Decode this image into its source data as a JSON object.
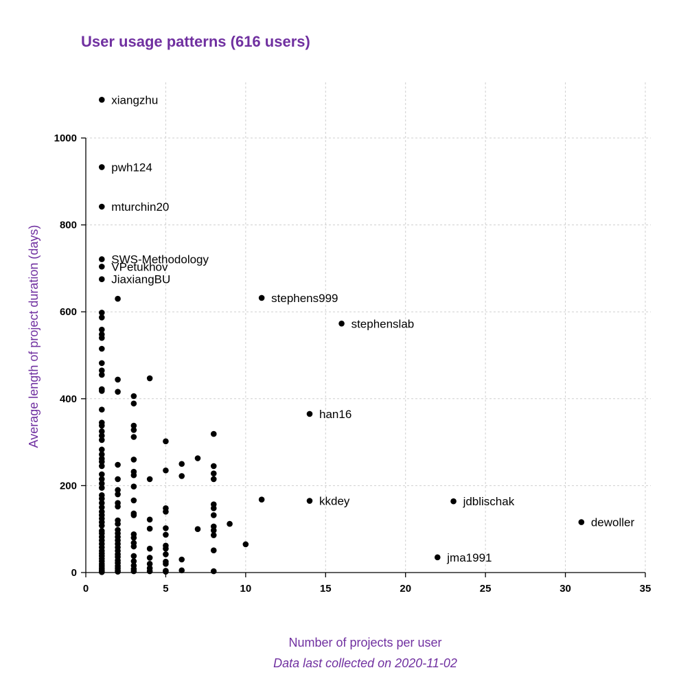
{
  "chart_data": {
    "type": "scatter",
    "title": "User usage patterns (616 users)",
    "xlabel": "Number of projects per user",
    "ylabel": "Average length of project duration (days)",
    "caption": "Data last collected on 2020-11-02",
    "xlim": [
      0,
      35
    ],
    "ylim": [
      0,
      1000
    ],
    "xticks": [
      0,
      5,
      10,
      15,
      20,
      25,
      30,
      35
    ],
    "yticks": [
      0,
      200,
      400,
      600,
      800,
      1000
    ],
    "grid": true,
    "colors": {
      "title": "#7030a0",
      "points": "#000000",
      "grid": "#cfcfcf"
    },
    "labeled_points": [
      {
        "x": 1,
        "y": 1088,
        "label": "xiangzhu"
      },
      {
        "x": 1,
        "y": 933,
        "label": "pwh124"
      },
      {
        "x": 1,
        "y": 842,
        "label": "mturchin20"
      },
      {
        "x": 1,
        "y": 721,
        "label": "SWS-Methodology"
      },
      {
        "x": 1,
        "y": 704,
        "label": "VPetukhov"
      },
      {
        "x": 1,
        "y": 675,
        "label": "JiaxiangBU"
      },
      {
        "x": 11,
        "y": 632,
        "label": "stephens999"
      },
      {
        "x": 16,
        "y": 573,
        "label": "stephenslab"
      },
      {
        "x": 14,
        "y": 365,
        "label": "han16"
      },
      {
        "x": 14,
        "y": 165,
        "label": "kkdey"
      },
      {
        "x": 23,
        "y": 164,
        "label": "jdblischak"
      },
      {
        "x": 31,
        "y": 116,
        "label": "dewoller"
      },
      {
        "x": 22,
        "y": 35,
        "label": "jma1991"
      }
    ],
    "points": [
      [
        1,
        598
      ],
      [
        1,
        587
      ],
      [
        1,
        559
      ],
      [
        1,
        548
      ],
      [
        1,
        540
      ],
      [
        1,
        515
      ],
      [
        1,
        482
      ],
      [
        1,
        465
      ],
      [
        1,
        455
      ],
      [
        1,
        422
      ],
      [
        1,
        418
      ],
      [
        1,
        375
      ],
      [
        1,
        345
      ],
      [
        1,
        338
      ],
      [
        1,
        325
      ],
      [
        1,
        315
      ],
      [
        1,
        305
      ],
      [
        1,
        283
      ],
      [
        1,
        272
      ],
      [
        1,
        262
      ],
      [
        1,
        255
      ],
      [
        1,
        245
      ],
      [
        1,
        226
      ],
      [
        1,
        215
      ],
      [
        1,
        205
      ],
      [
        1,
        195
      ],
      [
        1,
        178
      ],
      [
        1,
        170
      ],
      [
        1,
        160
      ],
      [
        1,
        150
      ],
      [
        1,
        140
      ],
      [
        1,
        132
      ],
      [
        1,
        124
      ],
      [
        1,
        116
      ],
      [
        1,
        108
      ],
      [
        1,
        96
      ],
      [
        1,
        90
      ],
      [
        1,
        82
      ],
      [
        1,
        74
      ],
      [
        1,
        66
      ],
      [
        1,
        58
      ],
      [
        1,
        50
      ],
      [
        1,
        44
      ],
      [
        1,
        38
      ],
      [
        1,
        32
      ],
      [
        1,
        26
      ],
      [
        1,
        20
      ],
      [
        1,
        15
      ],
      [
        1,
        10
      ],
      [
        1,
        6
      ],
      [
        1,
        3
      ],
      [
        1,
        1
      ],
      [
        2,
        630
      ],
      [
        2,
        444
      ],
      [
        2,
        416
      ],
      [
        2,
        248
      ],
      [
        2,
        215
      ],
      [
        2,
        190
      ],
      [
        2,
        180
      ],
      [
        2,
        160
      ],
      [
        2,
        152
      ],
      [
        2,
        120
      ],
      [
        2,
        112
      ],
      [
        2,
        98
      ],
      [
        2,
        90
      ],
      [
        2,
        82
      ],
      [
        2,
        74
      ],
      [
        2,
        66
      ],
      [
        2,
        58
      ],
      [
        2,
        50
      ],
      [
        2,
        42
      ],
      [
        2,
        36
      ],
      [
        2,
        28
      ],
      [
        2,
        22
      ],
      [
        2,
        15
      ],
      [
        2,
        10
      ],
      [
        2,
        5
      ],
      [
        2,
        2
      ],
      [
        3,
        406
      ],
      [
        3,
        389
      ],
      [
        3,
        338
      ],
      [
        3,
        328
      ],
      [
        3,
        312
      ],
      [
        3,
        260
      ],
      [
        3,
        232
      ],
      [
        3,
        224
      ],
      [
        3,
        198
      ],
      [
        3,
        166
      ],
      [
        3,
        136
      ],
      [
        3,
        132
      ],
      [
        3,
        88
      ],
      [
        3,
        80
      ],
      [
        3,
        68
      ],
      [
        3,
        60
      ],
      [
        3,
        38
      ],
      [
        3,
        26
      ],
      [
        3,
        16
      ],
      [
        3,
        8
      ],
      [
        3,
        3
      ],
      [
        4,
        447
      ],
      [
        4,
        215
      ],
      [
        4,
        122
      ],
      [
        4,
        101
      ],
      [
        4,
        55
      ],
      [
        4,
        34
      ],
      [
        4,
        20
      ],
      [
        4,
        10
      ],
      [
        4,
        3
      ],
      [
        5,
        302
      ],
      [
        5,
        235
      ],
      [
        5,
        148
      ],
      [
        5,
        140
      ],
      [
        5,
        102
      ],
      [
        5,
        87
      ],
      [
        5,
        62
      ],
      [
        5,
        55
      ],
      [
        5,
        42
      ],
      [
        5,
        25
      ],
      [
        5,
        20
      ],
      [
        5,
        4
      ],
      [
        5,
        2
      ],
      [
        6,
        250
      ],
      [
        6,
        222
      ],
      [
        6,
        30
      ],
      [
        6,
        5
      ],
      [
        7,
        263
      ],
      [
        7,
        100
      ],
      [
        8,
        319
      ],
      [
        8,
        245
      ],
      [
        8,
        228
      ],
      [
        8,
        215
      ],
      [
        8,
        157
      ],
      [
        8,
        148
      ],
      [
        8,
        132
      ],
      [
        8,
        106
      ],
      [
        8,
        97
      ],
      [
        8,
        86
      ],
      [
        8,
        51
      ],
      [
        8,
        3
      ],
      [
        9,
        112
      ],
      [
        10,
        65
      ],
      [
        11,
        168
      ]
    ]
  }
}
